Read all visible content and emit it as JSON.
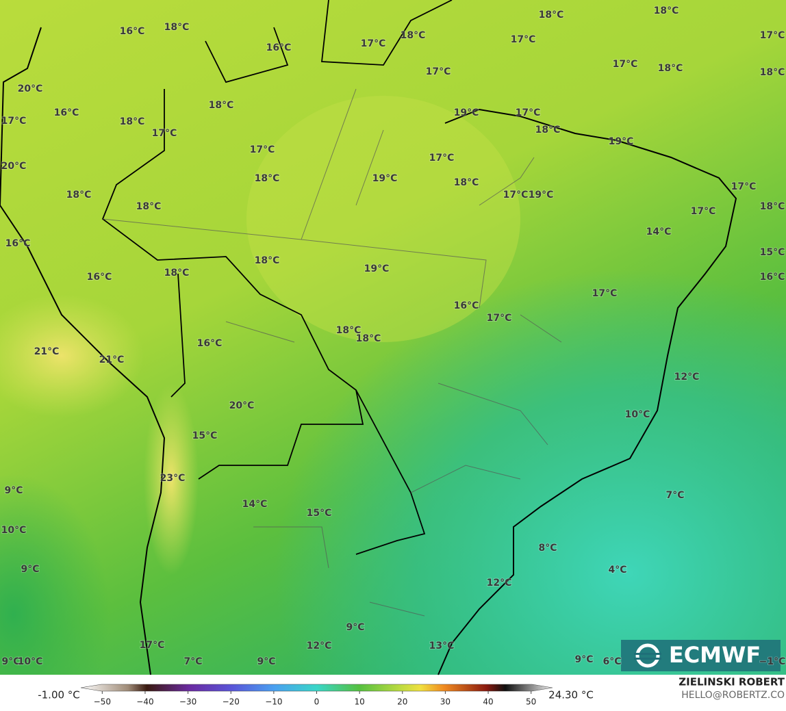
{
  "logo": "ECMWF",
  "credit": {
    "name": "ZIELINSKI ROBERT",
    "email": "HELLO@ROBERTZ.CO"
  },
  "colorbar": {
    "min_label": "-1.00 °C",
    "max_label": "24.30 °C",
    "range": [
      -55,
      55
    ],
    "ticks": [
      {
        "value": -50,
        "label": "−50"
      },
      {
        "value": -40,
        "label": "−40"
      },
      {
        "value": -30,
        "label": "−30"
      },
      {
        "value": -20,
        "label": "−20"
      },
      {
        "value": -10,
        "label": "−10"
      },
      0,
      10,
      20,
      30,
      40,
      50
    ]
  },
  "labels": [
    "18°C",
    "18°C",
    "16°C",
    "18°C",
    "18°C",
    "17°C",
    "17°C",
    "17°C",
    "16°C",
    "17°C",
    "18°C",
    "17°C",
    "18°C",
    "20°C",
    "18°C",
    "19°C",
    "17°C",
    "16°C",
    "17°C",
    "18°C",
    "18°C",
    "17°C",
    "19°C",
    "17°C",
    "17°C",
    "20°C",
    "18°C",
    "19°C",
    "18°C",
    "17°C",
    "18°C",
    "17°C",
    "19°C",
    "18°C",
    "18°C",
    "17°C",
    "14°C",
    "16°C",
    "15°C",
    "18°C",
    "19°C",
    "18°C",
    "16°C",
    "16°C",
    "17°C",
    "16°C",
    "17°C",
    "18°C",
    "18°C",
    "16°C",
    "21°C",
    "21°C",
    "12°C",
    "20°C",
    "10°C",
    "15°C",
    "23°C",
    "9°C",
    "7°C",
    "14°C",
    "15°C",
    "10°C",
    "8°C",
    "9°C",
    "4°C",
    "12°C",
    "9°C",
    "17°C",
    "12°C",
    "13°C",
    "9°C",
    "10°C",
    "7°C",
    "9°C",
    "9°C",
    "6°C",
    "−1°C"
  ]
}
